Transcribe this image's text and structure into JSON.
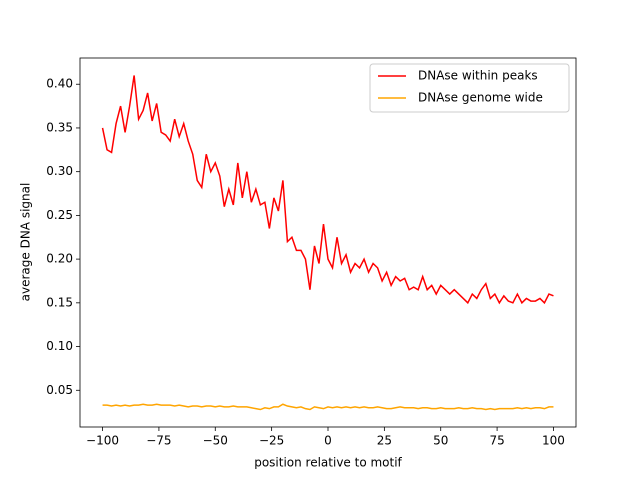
{
  "chart_data": {
    "type": "line",
    "xlabel": "position relative to motif",
    "ylabel": "average DNA signal",
    "x": [
      -100,
      -98,
      -96,
      -94,
      -92,
      -90,
      -88,
      -86,
      -84,
      -82,
      -80,
      -78,
      -76,
      -74,
      -72,
      -70,
      -68,
      -66,
      -64,
      -62,
      -60,
      -58,
      -56,
      -54,
      -52,
      -50,
      -48,
      -46,
      -44,
      -42,
      -40,
      -38,
      -36,
      -34,
      -32,
      -30,
      -28,
      -26,
      -24,
      -22,
      -20,
      -18,
      -16,
      -14,
      -12,
      -10,
      -8,
      -6,
      -4,
      -2,
      0,
      2,
      4,
      6,
      8,
      10,
      12,
      14,
      16,
      18,
      20,
      22,
      24,
      26,
      28,
      30,
      32,
      34,
      36,
      38,
      40,
      42,
      44,
      46,
      48,
      50,
      52,
      54,
      56,
      58,
      60,
      62,
      64,
      66,
      68,
      70,
      72,
      74,
      76,
      78,
      80,
      82,
      84,
      86,
      88,
      90,
      92,
      94,
      96,
      98,
      100
    ],
    "series": [
      {
        "name": "DNAse within peaks",
        "color": "#ff0000",
        "values": [
          0.35,
          0.325,
          0.322,
          0.355,
          0.375,
          0.345,
          0.375,
          0.41,
          0.36,
          0.37,
          0.39,
          0.358,
          0.378,
          0.345,
          0.342,
          0.335,
          0.36,
          0.34,
          0.355,
          0.335,
          0.32,
          0.29,
          0.282,
          0.32,
          0.3,
          0.31,
          0.295,
          0.26,
          0.28,
          0.262,
          0.31,
          0.27,
          0.3,
          0.265,
          0.28,
          0.262,
          0.265,
          0.235,
          0.27,
          0.255,
          0.29,
          0.22,
          0.225,
          0.21,
          0.21,
          0.2,
          0.165,
          0.215,
          0.195,
          0.24,
          0.2,
          0.19,
          0.225,
          0.195,
          0.205,
          0.185,
          0.195,
          0.19,
          0.2,
          0.185,
          0.195,
          0.19,
          0.175,
          0.185,
          0.17,
          0.18,
          0.175,
          0.178,
          0.165,
          0.168,
          0.165,
          0.18,
          0.165,
          0.17,
          0.16,
          0.17,
          0.165,
          0.16,
          0.165,
          0.16,
          0.155,
          0.15,
          0.16,
          0.155,
          0.165,
          0.172,
          0.155,
          0.16,
          0.15,
          0.158,
          0.152,
          0.15,
          0.16,
          0.15,
          0.155,
          0.152,
          0.152,
          0.155,
          0.15,
          0.16,
          0.158
        ]
      },
      {
        "name": "DNAse genome wide",
        "color": "#ffa500",
        "values": [
          0.033,
          0.033,
          0.032,
          0.033,
          0.032,
          0.033,
          0.032,
          0.033,
          0.033,
          0.034,
          0.033,
          0.033,
          0.034,
          0.033,
          0.033,
          0.033,
          0.032,
          0.033,
          0.032,
          0.031,
          0.032,
          0.032,
          0.031,
          0.032,
          0.032,
          0.031,
          0.032,
          0.031,
          0.031,
          0.032,
          0.031,
          0.031,
          0.031,
          0.03,
          0.029,
          0.028,
          0.03,
          0.029,
          0.031,
          0.031,
          0.034,
          0.032,
          0.031,
          0.03,
          0.031,
          0.029,
          0.028,
          0.031,
          0.03,
          0.029,
          0.031,
          0.03,
          0.031,
          0.03,
          0.031,
          0.03,
          0.031,
          0.03,
          0.031,
          0.03,
          0.03,
          0.031,
          0.03,
          0.029,
          0.029,
          0.03,
          0.031,
          0.03,
          0.03,
          0.03,
          0.029,
          0.03,
          0.03,
          0.029,
          0.029,
          0.03,
          0.029,
          0.029,
          0.029,
          0.03,
          0.029,
          0.029,
          0.03,
          0.029,
          0.029,
          0.028,
          0.029,
          0.028,
          0.029,
          0.029,
          0.029,
          0.029,
          0.03,
          0.029,
          0.03,
          0.029,
          0.03,
          0.03,
          0.029,
          0.031,
          0.031
        ]
      }
    ],
    "xlim": [
      -110,
      110
    ],
    "ylim": [
      0.008,
      0.43
    ],
    "xticks": [
      {
        "value": -100,
        "label": "−100"
      },
      {
        "value": -75,
        "label": "−75"
      },
      {
        "value": -50,
        "label": "−50"
      },
      {
        "value": -25,
        "label": "−25"
      },
      0,
      25,
      50,
      75,
      100
    ],
    "yticks": [
      0.05,
      {
        "value": 0.1,
        "label": "0.10"
      },
      0.15,
      {
        "value": 0.2,
        "label": "0.20"
      },
      0.25,
      {
        "value": 0.3,
        "label": "0.30"
      },
      0.35,
      {
        "value": 0.4,
        "label": "0.40"
      }
    ],
    "legend": "upper right"
  }
}
